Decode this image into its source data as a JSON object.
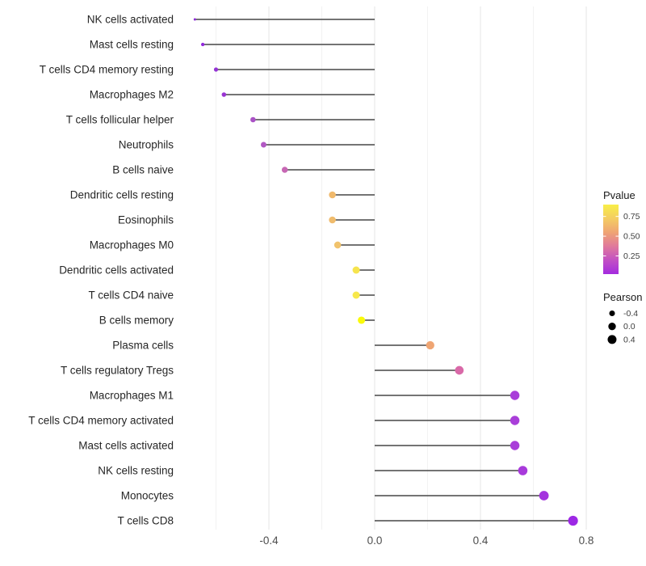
{
  "chart_data": {
    "type": "lollipop",
    "title": "",
    "xlabel": "",
    "ylabel": "",
    "xlim": [
      -0.75,
      0.82
    ],
    "grid": "on",
    "background": "#ffffff",
    "stem_color": "#474747",
    "major_grid_color": "#e5e5e5",
    "minor_grid_color": "#f1f1f1",
    "axis_text_color": "#4d4d4d",
    "category_text_color": "#262626",
    "x_ticks": [
      {
        "value": -0.4,
        "label": "-0.4"
      },
      {
        "value": 0.0,
        "label": "0.0"
      },
      {
        "value": 0.4,
        "label": "0.4"
      },
      {
        "value": 0.8,
        "label": "0.8"
      }
    ],
    "x_minor_ticks": [
      -0.6,
      -0.2,
      0.2,
      0.6
    ],
    "points": [
      {
        "label": "NK cells activated",
        "pearson": -0.68,
        "color": "#8e2bd8"
      },
      {
        "label": "Mast cells resting",
        "pearson": -0.65,
        "color": "#9129db"
      },
      {
        "label": "T cells CD4 memory resting",
        "pearson": -0.6,
        "color": "#9434d4"
      },
      {
        "label": "Macrophages M2",
        "pearson": -0.57,
        "color": "#9934d2"
      },
      {
        "label": "T cells follicular helper",
        "pearson": -0.46,
        "color": "#aa52c6"
      },
      {
        "label": "Neutrophils",
        "pearson": -0.42,
        "color": "#b158c3"
      },
      {
        "label": "B cells naive",
        "pearson": -0.34,
        "color": "#c767b4"
      },
      {
        "label": "Dendritic cells resting",
        "pearson": -0.16,
        "color": "#f0b96c"
      },
      {
        "label": "Eosinophils",
        "pearson": -0.16,
        "color": "#f0bc6d"
      },
      {
        "label": "Macrophages M0",
        "pearson": -0.14,
        "color": "#f1c36d"
      },
      {
        "label": "Dendritic cells activated",
        "pearson": -0.07,
        "color": "#f6e44e"
      },
      {
        "label": "T cells CD4 naive",
        "pearson": -0.07,
        "color": "#f7e84b"
      },
      {
        "label": "B cells memory",
        "pearson": -0.05,
        "color": "#fafa0a"
      },
      {
        "label": "Plasma cells",
        "pearson": 0.21,
        "color": "#efa573"
      },
      {
        "label": "T cells regulatory  Tregs",
        "pearson": 0.32,
        "color": "#d969a8"
      },
      {
        "label": "Macrophages M1",
        "pearson": 0.53,
        "color": "#a93ed9"
      },
      {
        "label": "T cells CD4 memory activated",
        "pearson": 0.53,
        "color": "#a93ed9"
      },
      {
        "label": "Mast cells activated",
        "pearson": 0.53,
        "color": "#a93ed9"
      },
      {
        "label": "NK cells resting",
        "pearson": 0.56,
        "color": "#a83adb"
      },
      {
        "label": "Monocytes",
        "pearson": 0.64,
        "color": "#a434de"
      },
      {
        "label": "T cells CD8",
        "pearson": 0.75,
        "color": "#9d28e5"
      }
    ],
    "size_scale": {
      "v_min": -0.68,
      "v_span": 1.43,
      "r_min": 1.5,
      "r_range": 4.6
    },
    "legend_pvalue": {
      "title": "Pvalue",
      "range_top": 0.9,
      "range_bottom": 0.02,
      "ticks": [
        {
          "value": 0.75,
          "label": "0.75"
        },
        {
          "value": 0.5,
          "label": "0.50"
        },
        {
          "value": 0.25,
          "label": "0.25"
        }
      ],
      "gradient_top_to_bottom": [
        "#f8ee47",
        "#f4cd62",
        "#efa474",
        "#e0799c",
        "#c250c4",
        "#a42bdf"
      ]
    },
    "legend_pearson": {
      "title": "Pearson",
      "items": [
        {
          "value": -0.4,
          "label": "-0.4"
        },
        {
          "value": 0.0,
          "label": "0.0"
        },
        {
          "value": 0.4,
          "label": "0.4"
        }
      ],
      "dot_color": "#000000"
    }
  },
  "layout_text": {
    "note": ""
  }
}
